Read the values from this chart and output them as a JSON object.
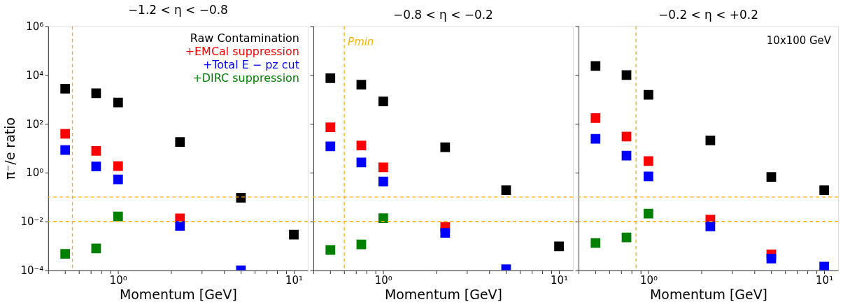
{
  "chart_data": [
    {
      "type": "scatter",
      "title": "−1.2 < η < −0.8",
      "xlabel": "Momentum [GeV]",
      "ylabel": "π⁻/e ratio",
      "log": "xy",
      "marker": "square",
      "grid": false,
      "legend": "top right",
      "x": [
        0.5,
        0.75,
        1,
        2.25,
        5,
        10
      ],
      "series": [
        {
          "name": "Raw Contamination",
          "color": "#000000",
          "values": [
            2750,
            1800,
            750,
            18,
            0.094,
            0.0029
          ]
        },
        {
          "name": "+EMCal suppression",
          "color": "#ff0000",
          "values": [
            39,
            7.7,
            1.85,
            0.0133,
            null,
            null
          ]
        },
        {
          "name": "+Total E − pz cut",
          "color": "#0000ff",
          "values": [
            8.4,
            1.8,
            0.53,
            0.0066,
            0.0001,
            null
          ]
        },
        {
          "name": "+DIRC suppression",
          "color": "#008000",
          "values": [
            0.00047,
            0.00078,
            0.016,
            null,
            null,
            null
          ]
        }
      ],
      "xlim": [
        0.4,
        12
      ],
      "ylim": [
        0.0001,
        1000000
      ],
      "xticks": [
        {
          "value": 0.4,
          "label": null
        },
        {
          "value": 0.5,
          "label": null
        },
        {
          "value": 0.6,
          "label": null
        },
        {
          "value": 0.7,
          "label": null
        },
        {
          "value": 0.8,
          "label": null
        },
        {
          "value": 0.9,
          "label": null
        },
        {
          "value": 1,
          "label": "10⁰"
        },
        {
          "value": 2,
          "label": null
        },
        {
          "value": 3,
          "label": null
        },
        {
          "value": 4,
          "label": null
        },
        {
          "value": 5,
          "label": null
        },
        {
          "value": 6,
          "label": null
        },
        {
          "value": 7,
          "label": null
        },
        {
          "value": 8,
          "label": null
        },
        {
          "value": 9,
          "label": null
        },
        {
          "value": 10,
          "label": "10¹"
        }
      ],
      "yticks": [
        {
          "value": 0.0001,
          "label": "10⁻⁴"
        },
        {
          "value": 0.01,
          "label": "10⁻²"
        },
        {
          "value": 1,
          "label": "10⁰"
        },
        {
          "value": 100,
          "label": "10²"
        },
        {
          "value": 10000,
          "label": "10⁴"
        },
        {
          "value": 1000000,
          "label": "10⁶"
        }
      ],
      "ref_lines": [
        {
          "axis": "x",
          "value": 0.55,
          "color": "#ffb000",
          "line_style": "dashed"
        },
        {
          "axis": "y",
          "value": 0.1,
          "color": "#ffb000",
          "line_style": "dashed"
        },
        {
          "axis": "y",
          "value": 0.01,
          "color": "#ffb000",
          "line_style": "dashed"
        }
      ]
    },
    {
      "type": "scatter",
      "title": "−0.8 < η < −0.2",
      "xlabel": "Momentum [GeV]",
      "log": "xy",
      "marker": "square",
      "grid": false,
      "tick_labels": "x",
      "x": [
        0.5,
        0.75,
        1,
        2.25,
        5,
        10
      ],
      "series": [
        {
          "color": "#000000",
          "values": [
            7400,
            4000,
            820,
            11,
            0.19,
            0.00095
          ]
        },
        {
          "color": "#ff0000",
          "values": [
            72,
            13,
            1.65,
            0.006,
            null,
            null
          ]
        },
        {
          "color": "#0000ff",
          "values": [
            12,
            2.6,
            0.43,
            0.0034,
            0.00011,
            null
          ]
        },
        {
          "color": "#008000",
          "values": [
            0.00068,
            0.00114,
            0.0135,
            null,
            null,
            null
          ]
        }
      ],
      "xlim": [
        0.4,
        12
      ],
      "ylim": [
        0.0001,
        1000000
      ],
      "xticks": [
        {
          "value": 0.4,
          "label": null
        },
        {
          "value": 0.5,
          "label": null
        },
        {
          "value": 0.6,
          "label": null
        },
        {
          "value": 0.7,
          "label": null
        },
        {
          "value": 0.8,
          "label": null
        },
        {
          "value": 0.9,
          "label": null
        },
        {
          "value": 1,
          "label": "10⁰"
        },
        {
          "value": 2,
          "label": null
        },
        {
          "value": 3,
          "label": null
        },
        {
          "value": 4,
          "label": null
        },
        {
          "value": 5,
          "label": null
        },
        {
          "value": 6,
          "label": null
        },
        {
          "value": 7,
          "label": null
        },
        {
          "value": 8,
          "label": null
        },
        {
          "value": 9,
          "label": null
        },
        {
          "value": 10,
          "label": "10¹"
        }
      ],
      "yticks": [
        {
          "value": 0.0001,
          "label": null
        },
        {
          "value": 0.01,
          "label": null
        },
        {
          "value": 1,
          "label": null
        },
        {
          "value": 100,
          "label": null
        },
        {
          "value": 10000,
          "label": null
        },
        {
          "value": 1000000,
          "label": null
        }
      ],
      "ref_lines": [
        {
          "axis": "x",
          "value": 0.6,
          "label": "Pmin",
          "color": "#ffb000",
          "line_style": "dashed"
        },
        {
          "axis": "y",
          "value": 0.1,
          "color": "#ffb000",
          "line_style": "dashed"
        },
        {
          "axis": "y",
          "value": 0.01,
          "color": "#ffb000",
          "line_style": "dashed"
        }
      ]
    },
    {
      "type": "scatter",
      "title": "−0.2 < η < +0.2",
      "xlabel": "Momentum [GeV]",
      "log": "xy",
      "marker": "square",
      "grid": false,
      "tick_labels": "x",
      "annotations": [
        "10x100 GeV"
      ],
      "x": [
        0.5,
        0.75,
        1,
        2.25,
        5,
        10
      ],
      "series": [
        {
          "color": "#000000",
          "values": [
            23500,
            10000,
            1550,
            21,
            0.67,
            0.19
          ]
        },
        {
          "color": "#ff0000",
          "values": [
            173,
            30,
            3.0,
            0.0118,
            0.00045,
            null
          ]
        },
        {
          "color": "#0000ff",
          "values": [
            24,
            5,
            0.7,
            0.0063,
            0.0003,
            0.00014
          ]
        },
        {
          "color": "#008000",
          "values": [
            0.0013,
            0.0022,
            0.021,
            null,
            null,
            null
          ]
        }
      ],
      "xlim": [
        0.4,
        12
      ],
      "ylim": [
        0.0001,
        1000000
      ],
      "xticks": [
        {
          "value": 0.4,
          "label": null
        },
        {
          "value": 0.5,
          "label": null
        },
        {
          "value": 0.6,
          "label": null
        },
        {
          "value": 0.7,
          "label": null
        },
        {
          "value": 0.8,
          "label": null
        },
        {
          "value": 0.9,
          "label": null
        },
        {
          "value": 1,
          "label": "10⁰"
        },
        {
          "value": 2,
          "label": null
        },
        {
          "value": 3,
          "label": null
        },
        {
          "value": 4,
          "label": null
        },
        {
          "value": 5,
          "label": null
        },
        {
          "value": 6,
          "label": null
        },
        {
          "value": 7,
          "label": null
        },
        {
          "value": 8,
          "label": null
        },
        {
          "value": 9,
          "label": null
        },
        {
          "value": 10,
          "label": "10¹"
        }
      ],
      "yticks": [
        {
          "value": 0.0001,
          "label": null
        },
        {
          "value": 0.01,
          "label": null
        },
        {
          "value": 1,
          "label": null
        },
        {
          "value": 100,
          "label": null
        },
        {
          "value": 10000,
          "label": null
        },
        {
          "value": 1000000,
          "label": null
        }
      ],
      "ref_lines": [
        {
          "axis": "x",
          "value": 0.85,
          "color": "#ffb000",
          "line_style": "dashed"
        },
        {
          "axis": "y",
          "value": 0.1,
          "color": "#ffb000",
          "line_style": "dashed"
        },
        {
          "axis": "y",
          "value": 0.01,
          "color": "#ffb000",
          "line_style": "dashed"
        }
      ]
    }
  ]
}
